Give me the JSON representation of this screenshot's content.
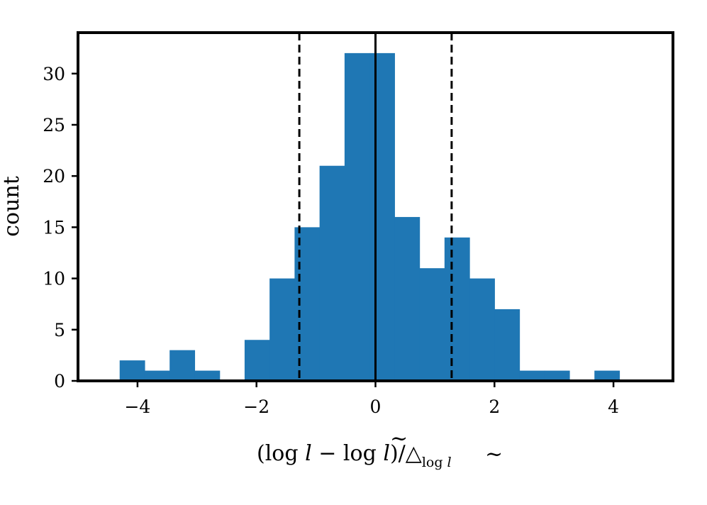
{
  "chart_data": {
    "type": "bar",
    "xlabel": "(log l − log l̃)/△log l̃",
    "xlabel_parts": {
      "main": "(log ",
      "var1": "l",
      "minus_log": " − log ",
      "var2": "l",
      "tilde": "~",
      "close": ")/",
      "delta": "△",
      "sub_log": "log ",
      "sub_var": "l",
      "sub_tilde": "~"
    },
    "ylabel": "count",
    "xlim": [
      -5,
      5
    ],
    "ylim": [
      0,
      34
    ],
    "xticks": [
      -4,
      -2,
      0,
      2,
      4
    ],
    "xtick_labels": [
      "−4",
      "−2",
      "0",
      "2",
      "4"
    ],
    "yticks": [
      0,
      5,
      10,
      15,
      20,
      25,
      30
    ],
    "ytick_labels": [
      "0",
      "5",
      "10",
      "15",
      "20",
      "25",
      "30"
    ],
    "bin_edges": [
      -4.3,
      -3.88,
      -3.46,
      -3.04,
      -2.62,
      -2.2,
      -1.78,
      -1.36,
      -0.94,
      -0.52,
      -0.1,
      0.32,
      0.74,
      1.16,
      1.58,
      2.0,
      2.42,
      2.84,
      3.26,
      3.68,
      4.1
    ],
    "values": [
      2,
      1,
      3,
      1,
      0,
      4,
      10,
      15,
      21,
      32,
      32,
      16,
      11,
      14,
      10,
      7,
      1,
      1,
      0,
      1
    ],
    "bar_color": "#1f77b4",
    "reference_lines": [
      {
        "x": 0,
        "style": "solid",
        "color": "#000000"
      },
      {
        "x": -1.28,
        "style": "dashed",
        "color": "#000000"
      },
      {
        "x": 1.28,
        "style": "dashed",
        "color": "#000000"
      }
    ],
    "grid": false,
    "legend": "none"
  }
}
